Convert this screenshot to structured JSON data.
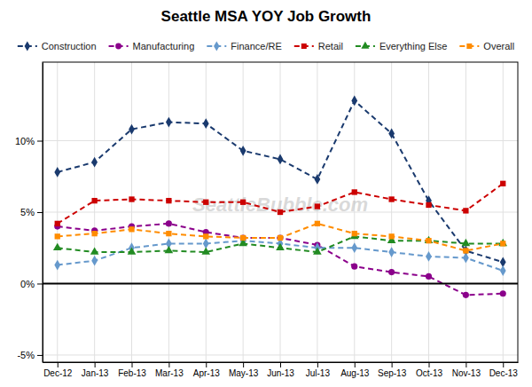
{
  "chart_data": {
    "type": "line",
    "title": "Seattle MSA YOY Job Growth",
    "annotations": [
      "SeattleBubble.com"
    ],
    "categories": [
      "Dec-12",
      "Jan-13",
      "Feb-13",
      "Mar-13",
      "Apr-13",
      "May-13",
      "Jun-13",
      "Jul-13",
      "Aug-13",
      "Sep-13",
      "Oct-13",
      "Nov-13",
      "Dec-13"
    ],
    "series": [
      {
        "name": "Construction",
        "color": "#1a3a6e",
        "marker": "diamond",
        "line_style": "dashed",
        "values": [
          7.8,
          8.5,
          10.8,
          11.3,
          11.2,
          9.3,
          8.7,
          7.3,
          12.8,
          10.5,
          5.8,
          2.3,
          1.5
        ]
      },
      {
        "name": "Manufacturing",
        "color": "#8b008b",
        "marker": "circle",
        "line_style": "dashed",
        "values": [
          4.0,
          3.7,
          4.0,
          4.2,
          3.6,
          3.2,
          3.2,
          2.7,
          1.2,
          0.8,
          0.5,
          -0.8,
          -0.7
        ]
      },
      {
        "name": "Finance/RE",
        "color": "#6699cc",
        "marker": "diamond",
        "line_style": "dashed",
        "values": [
          1.3,
          1.6,
          2.5,
          2.8,
          2.8,
          3.0,
          2.8,
          2.5,
          2.5,
          2.2,
          1.9,
          1.8,
          0.9
        ]
      },
      {
        "name": "Retail",
        "color": "#cc0000",
        "marker": "square",
        "line_style": "dashed",
        "values": [
          4.2,
          5.8,
          5.9,
          5.8,
          5.7,
          5.7,
          5.0,
          5.4,
          6.4,
          5.9,
          5.5,
          5.1,
          7.0
        ]
      },
      {
        "name": "Everything Else",
        "color": "#228B22",
        "marker": "triangle",
        "line_style": "dashed",
        "values": [
          2.5,
          2.2,
          2.2,
          2.3,
          2.2,
          2.8,
          2.5,
          2.2,
          3.3,
          3.0,
          3.0,
          2.8,
          2.8
        ]
      },
      {
        "name": "Overall",
        "color": "#ff8c00",
        "marker": "square",
        "line_style": "dashed",
        "values": [
          3.3,
          3.5,
          3.8,
          3.5,
          3.3,
          3.2,
          3.2,
          4.2,
          3.5,
          3.3,
          3.0,
          2.3,
          2.8
        ]
      }
    ],
    "ylim": [
      -5.5,
      15.5
    ],
    "yticks": [
      {
        "value": -5,
        "label": "-5%"
      },
      {
        "value": 0,
        "label": "0%"
      },
      {
        "value": 5,
        "label": "5%"
      },
      {
        "value": 10,
        "label": "10%"
      }
    ],
    "grid": true,
    "legend": "top"
  }
}
